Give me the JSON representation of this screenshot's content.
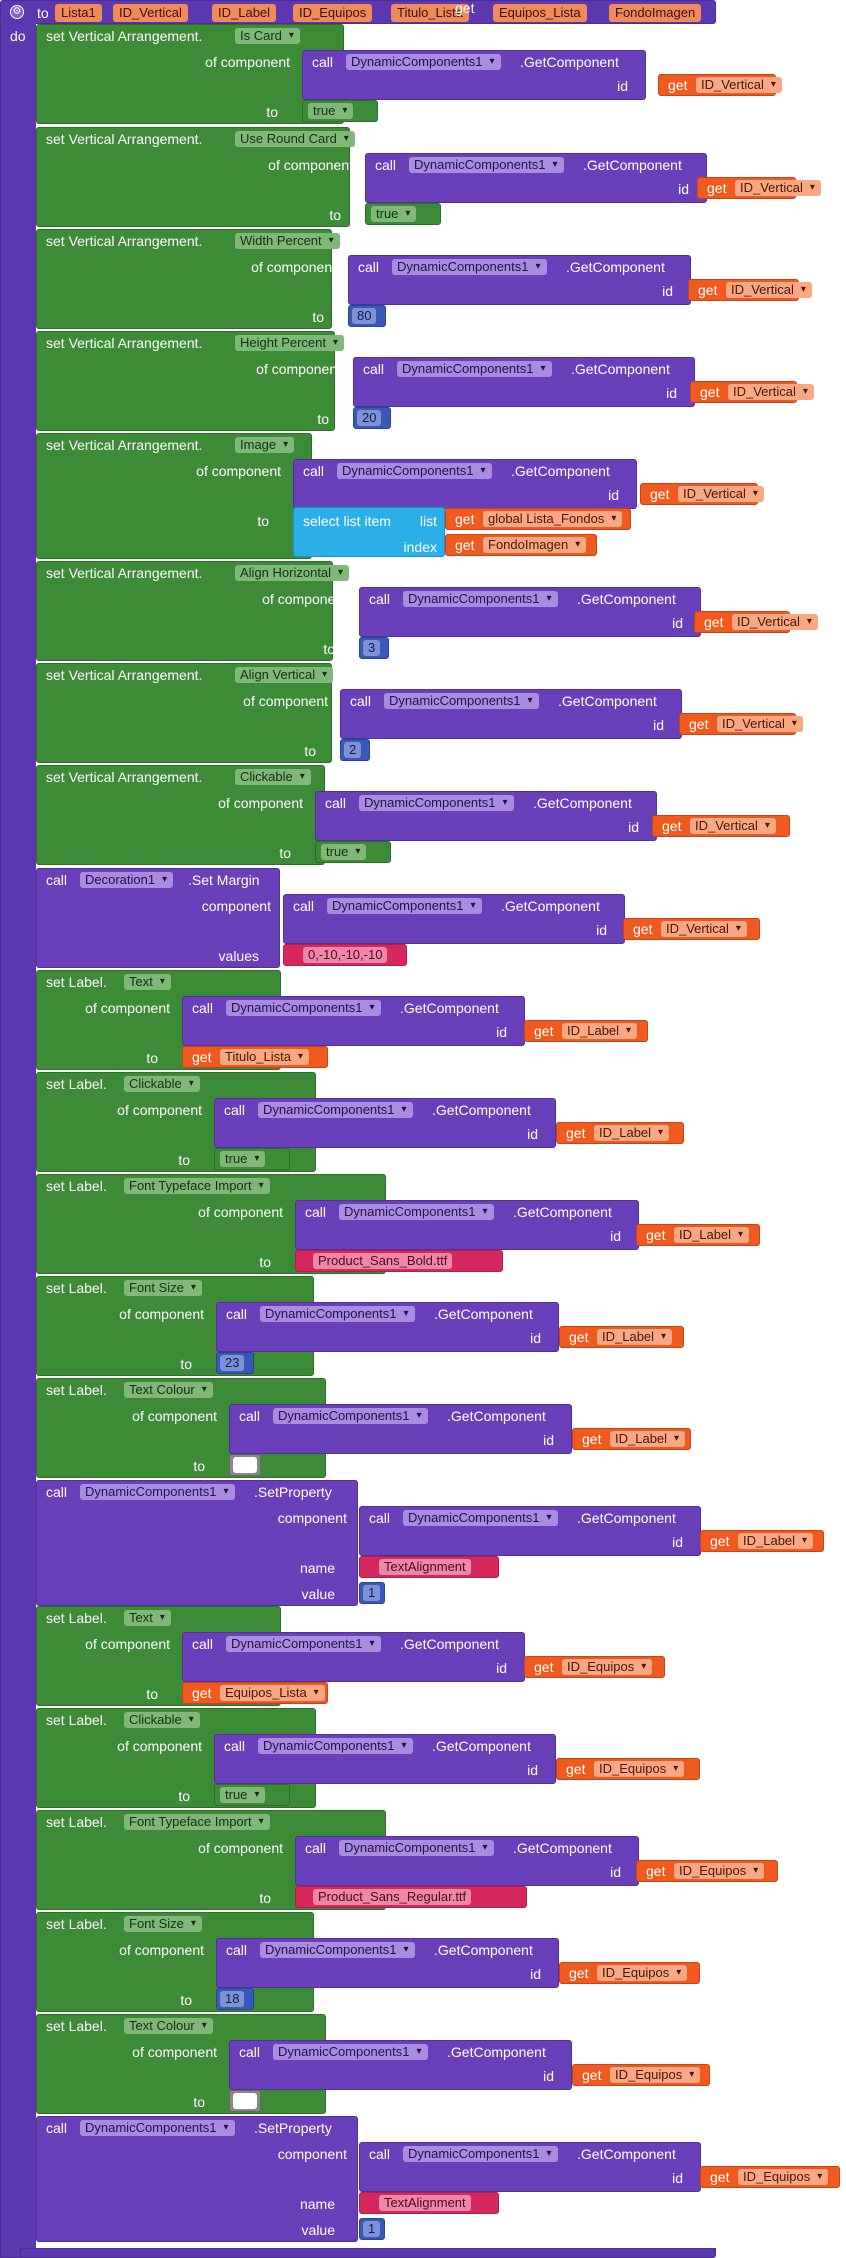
{
  "proc": {
    "to": "to",
    "do": "do",
    "name": "Lista1",
    "params": [
      "ID_Vertical",
      "ID_Label",
      "ID_Equipos",
      "Titulo_Lista",
      "Equipos_Lista",
      "FondoImagen"
    ]
  },
  "kw": {
    "of_component": "of component",
    "to": "to",
    "id": "id",
    "get": "get",
    "call": "call",
    "getcomponent": ".GetComponent",
    "dc1": "DynamicComponents1",
    "component": "component",
    "values": "values",
    "name": "name",
    "value": "value",
    "list": "list",
    "index": "index",
    "select_list_item": "select list item",
    "set_margin": ".Set Margin",
    "set_property": ".SetProperty",
    "decoration1": "Decoration1"
  },
  "setters": {
    "s1": {
      "label": "set Vertical Arrangement.",
      "prop": "Is Card",
      "id": "ID_Vertical",
      "val": "true"
    },
    "s2": {
      "label": "set Vertical Arrangement.",
      "prop": "Use Round Card",
      "id": "ID_Vertical",
      "val": "true"
    },
    "s3": {
      "label": "set Vertical Arrangement.",
      "prop": "Width Percent",
      "id": "ID_Vertical",
      "val": "80"
    },
    "s4": {
      "label": "set Vertical Arrangement.",
      "prop": "Height Percent",
      "id": "ID_Vertical",
      "val": "20"
    },
    "s5": {
      "label": "set Vertical Arrangement.",
      "prop": "Image",
      "id": "ID_Vertical",
      "list": "global Lista_Fondos",
      "index": "FondoImagen"
    },
    "s6": {
      "label": "set Vertical Arrangement.",
      "prop": "Align Horizontal",
      "id": "ID_Vertical",
      "val": "3"
    },
    "s7": {
      "label": "set Vertical Arrangement.",
      "prop": "Align Vertical",
      "id": "ID_Vertical",
      "val": "2"
    },
    "s8": {
      "label": "set Vertical Arrangement.",
      "prop": "Clickable",
      "id": "ID_Vertical",
      "val": "true"
    },
    "s9": {
      "id": "ID_Vertical",
      "val": "0,-10,-10,-10"
    },
    "s10": {
      "label": "set Label.",
      "prop": "Text",
      "id": "ID_Label",
      "val": "Titulo_Lista"
    },
    "s11": {
      "label": "set Label.",
      "prop": "Clickable",
      "id": "ID_Label",
      "val": "true"
    },
    "s12": {
      "label": "set Label.",
      "prop": "Font Typeface Import",
      "id": "ID_Label",
      "val": "Product_Sans_Bold.ttf"
    },
    "s13": {
      "label": "set Label.",
      "prop": "Font Size",
      "id": "ID_Label",
      "val": "23"
    },
    "s14": {
      "label": "set Label.",
      "prop": "Text Colour",
      "id": "ID_Label",
      "val": "#ffffff"
    },
    "s15": {
      "id": "ID_Label",
      "name": "TextAlignment",
      "val": "1"
    },
    "s16": {
      "label": "set Label.",
      "prop": "Text",
      "id": "ID_Equipos",
      "val": "Equipos_Lista"
    },
    "s17": {
      "label": "set Label.",
      "prop": "Clickable",
      "id": "ID_Equipos",
      "val": "true"
    },
    "s18": {
      "label": "set Label.",
      "prop": "Font Typeface Import",
      "id": "ID_Equipos",
      "val": "Product_Sans_Regular.ttf"
    },
    "s19": {
      "label": "set Label.",
      "prop": "Font Size",
      "id": "ID_Equipos",
      "val": "18"
    },
    "s20": {
      "label": "set Label.",
      "prop": "Text Colour",
      "id": "ID_Equipos",
      "val": "#ffffff"
    },
    "s21": {
      "id": "ID_Equipos",
      "name": "TextAlignment",
      "val": "1"
    }
  },
  "colors": {
    "procedure": "#5b38b0",
    "setter": "#3d8b36",
    "component_call": "#6a3fba",
    "getter": "#f05a1e",
    "list": "#2ab0e6",
    "text": "#d6285c",
    "number": "#3859b8",
    "colour_swatch": "#ffffff"
  }
}
